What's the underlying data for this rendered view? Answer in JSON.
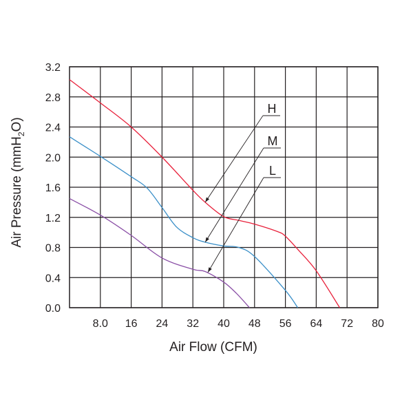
{
  "chart_data": {
    "type": "line",
    "title": "",
    "xlabel": "Air Flow (CFM)",
    "ylabel_parts": [
      "Air Pressure (mmH",
      "2",
      "O)"
    ],
    "xlim": [
      0,
      80
    ],
    "ylim": [
      0,
      3.2
    ],
    "grid": true,
    "x_ticks": [
      8,
      16,
      24,
      32,
      40,
      48,
      56,
      64,
      72,
      80
    ],
    "x_tick_labels": [
      "8.0",
      "16",
      "24",
      "32",
      "40",
      "48",
      "56",
      "64",
      "72",
      "80"
    ],
    "y_ticks": [
      0,
      0.4,
      0.8,
      1.2,
      1.6,
      2.0,
      2.4,
      2.8,
      3.2
    ],
    "y_tick_labels": [
      "0.0",
      "0.4",
      "0.8",
      "1.2",
      "1.6",
      "2.0",
      "2.4",
      "2.8",
      "3.2"
    ],
    "series": [
      {
        "name": "H",
        "color": "#e8203a",
        "points": [
          [
            0,
            3.03
          ],
          [
            8,
            2.72
          ],
          [
            16,
            2.4
          ],
          [
            24,
            2.0
          ],
          [
            32,
            1.56
          ],
          [
            35.2,
            1.4
          ],
          [
            40,
            1.21
          ],
          [
            43.9,
            1.16
          ],
          [
            48,
            1.11
          ],
          [
            54,
            1.01
          ],
          [
            56,
            0.95
          ],
          [
            59.3,
            0.77
          ],
          [
            64,
            0.49
          ],
          [
            70.1,
            0
          ]
        ],
        "annotation_at": [
          35.2,
          1.4
        ]
      },
      {
        "name": "M",
        "color": "#3a8fc8",
        "points": [
          [
            0,
            2.27
          ],
          [
            8,
            2.01
          ],
          [
            16,
            1.74
          ],
          [
            20.1,
            1.59
          ],
          [
            24,
            1.33
          ],
          [
            27.8,
            1.07
          ],
          [
            32,
            0.93
          ],
          [
            35.2,
            0.87
          ],
          [
            40,
            0.82
          ],
          [
            43.9,
            0.8
          ],
          [
            48,
            0.68
          ],
          [
            56,
            0.23
          ],
          [
            59.2,
            0
          ]
        ],
        "annotation_at": [
          35.2,
          0.87
        ]
      },
      {
        "name": "L",
        "color": "#8a4fa6",
        "points": [
          [
            0,
            1.45
          ],
          [
            8,
            1.23
          ],
          [
            16,
            0.96
          ],
          [
            24,
            0.66
          ],
          [
            32,
            0.51
          ],
          [
            35.2,
            0.48
          ],
          [
            40,
            0.34
          ],
          [
            43.3,
            0.19
          ],
          [
            46.7,
            0
          ]
        ],
        "annotation_at": [
          35.9,
          0.47
        ]
      }
    ]
  }
}
